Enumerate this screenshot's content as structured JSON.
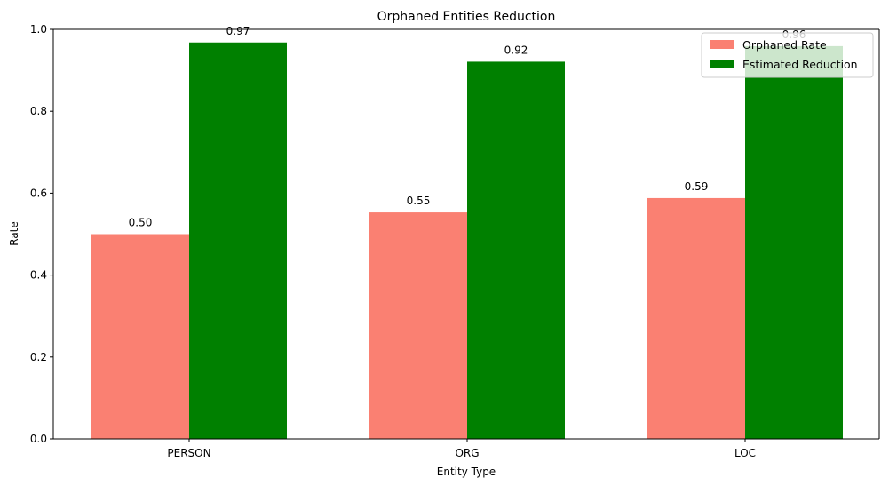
{
  "chart_data": {
    "type": "bar",
    "title": "Orphaned Entities Reduction",
    "xlabel": "Entity Type",
    "ylabel": "Rate",
    "categories": [
      "PERSON",
      "ORG",
      "LOC"
    ],
    "ylim": [
      0,
      1.0
    ],
    "yticks": [
      0.0,
      0.2,
      0.4,
      0.6,
      0.8,
      1.0
    ],
    "ytick_labels": [
      "0.0",
      "0.2",
      "0.4",
      "0.6",
      "0.8",
      "1.0"
    ],
    "grid": false,
    "legend_position": "top-right",
    "series": [
      {
        "name": "Orphaned Rate",
        "color": "#fa8072",
        "values": [
          0.5,
          0.553,
          0.588
        ],
        "labels": [
          "0.50",
          "0.55",
          "0.59"
        ]
      },
      {
        "name": "Estimated Reduction",
        "color": "#008000",
        "values": [
          0.968,
          0.921,
          0.959
        ],
        "labels": [
          "0.97",
          "0.92",
          "0.96"
        ]
      }
    ]
  }
}
